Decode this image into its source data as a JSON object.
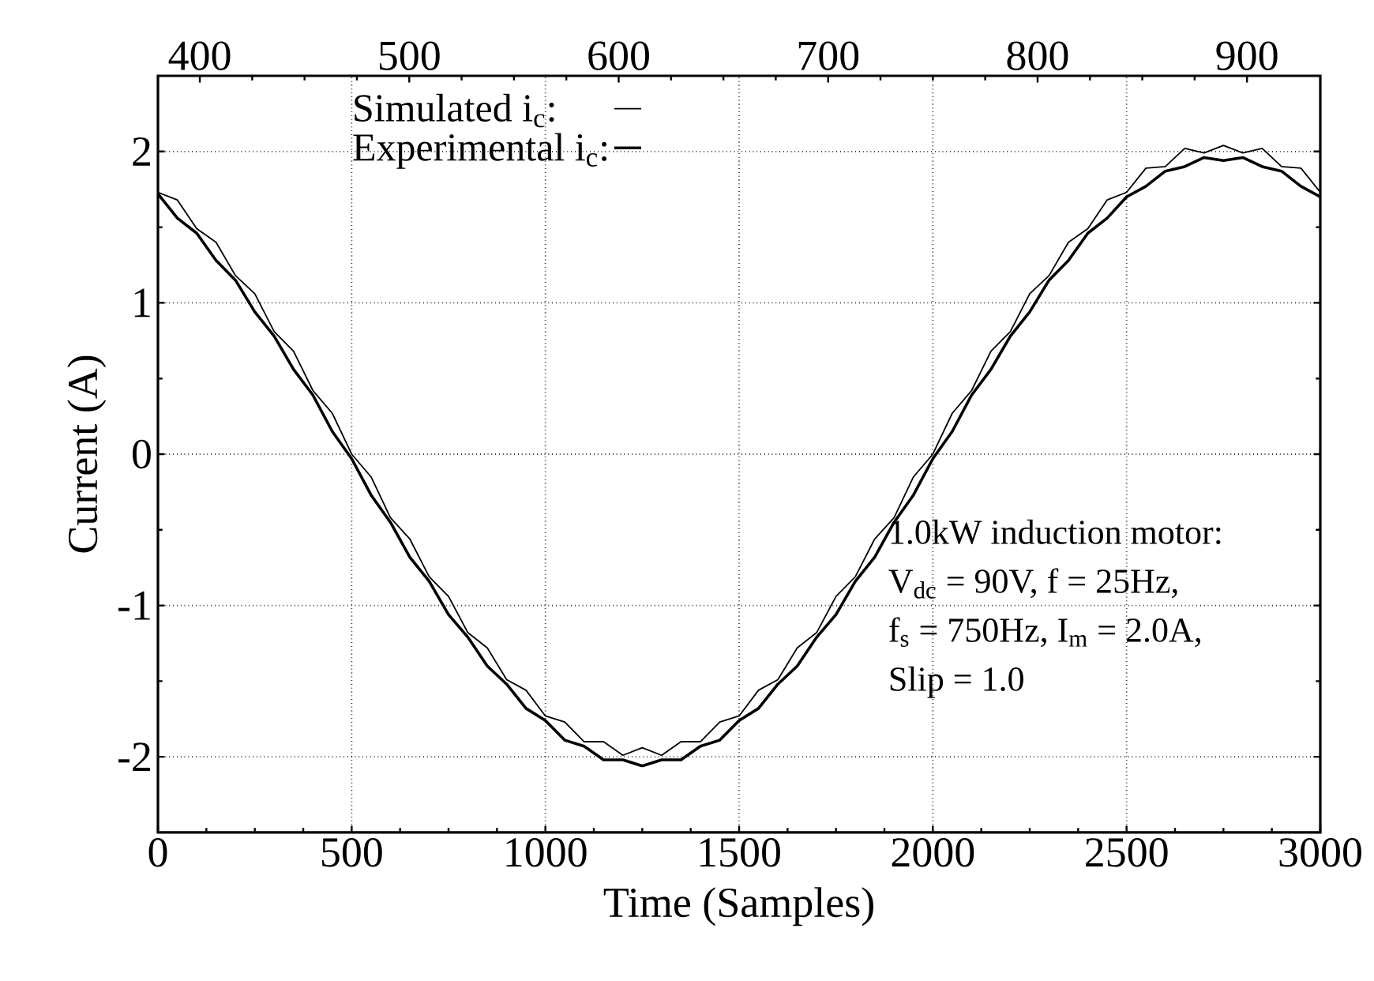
{
  "chart_data": {
    "type": "line",
    "xlabel": "Time (Samples)",
    "ylabel": "Current (A)",
    "x": [
      0,
      50,
      100,
      150,
      200,
      250,
      300,
      350,
      400,
      450,
      500,
      550,
      600,
      650,
      700,
      750,
      800,
      850,
      900,
      950,
      1000,
      1050,
      1100,
      1150,
      1200,
      1250,
      1300,
      1350,
      1400,
      1450,
      1500,
      1550,
      1600,
      1650,
      1700,
      1750,
      1800,
      1850,
      1900,
      1950,
      2000,
      2050,
      2100,
      2150,
      2200,
      2250,
      2300,
      2350,
      2400,
      2450,
      2500,
      2550,
      2600,
      2650,
      2700,
      2750,
      2800,
      2850,
      2900,
      2950,
      3000
    ],
    "series": [
      {
        "name": "Simulated i$_{c}$:",
        "color": "#000000",
        "values": [
          1.73,
          1.68,
          1.49,
          1.4,
          1.18,
          1.06,
          0.81,
          0.68,
          0.42,
          0.27,
          0.0,
          -0.15,
          -0.42,
          -0.56,
          -0.81,
          -0.94,
          -1.18,
          -1.28,
          -1.49,
          -1.56,
          -1.73,
          -1.77,
          -1.9,
          -1.9,
          -1.99,
          -1.94,
          -1.99,
          -1.9,
          -1.9,
          -1.77,
          -1.73,
          -1.56,
          -1.49,
          -1.28,
          -1.18,
          -0.94,
          -0.81,
          -0.56,
          -0.42,
          -0.15,
          0.0,
          0.27,
          0.42,
          0.68,
          0.81,
          1.06,
          1.18,
          1.4,
          1.49,
          1.68,
          1.73,
          1.89,
          1.9,
          2.02,
          1.99,
          2.04,
          1.99,
          2.02,
          1.9,
          1.89,
          1.73
        ]
      },
      {
        "name": "Experimental   i$_{c}$:",
        "color": "#000000",
        "values": [
          1.72,
          1.56,
          1.46,
          1.28,
          1.15,
          0.94,
          0.78,
          0.56,
          0.39,
          0.15,
          -0.03,
          -0.27,
          -0.45,
          -0.68,
          -0.84,
          -1.06,
          -1.21,
          -1.4,
          -1.52,
          -1.68,
          -1.76,
          -1.89,
          -1.93,
          -2.02,
          -2.02,
          -2.06,
          -2.02,
          -2.02,
          -1.93,
          -1.89,
          -1.76,
          -1.68,
          -1.52,
          -1.4,
          -1.21,
          -1.06,
          -0.84,
          -0.68,
          -0.45,
          -0.27,
          -0.03,
          0.15,
          0.39,
          0.56,
          0.78,
          0.94,
          1.15,
          1.28,
          1.46,
          1.56,
          1.7,
          1.77,
          1.87,
          1.9,
          1.96,
          1.94,
          1.96,
          1.9,
          1.87,
          1.77,
          1.7
        ]
      }
    ],
    "xlim": [
      0,
      3000
    ],
    "xticks": [
      0,
      500,
      1000,
      1500,
      2000,
      2500,
      3000
    ],
    "ylim": [
      -2.5,
      2.5
    ],
    "yticks": [
      -2,
      -1,
      0,
      1,
      2
    ],
    "x2lim": [
      380,
      935
    ],
    "x2ticks": [
      400,
      500,
      600,
      700,
      800,
      900
    ],
    "annotations": [
      "1.0kW induction motor:",
      "V$_{dc}$ = 90V, f = 25Hz,",
      "f$_{s}$ = 750Hz, I$_{m}$ = 2.0A,",
      "Slip = 1.0"
    ],
    "grid": true,
    "legend": "top left",
    "line_style": "solid",
    "marker": "none"
  }
}
